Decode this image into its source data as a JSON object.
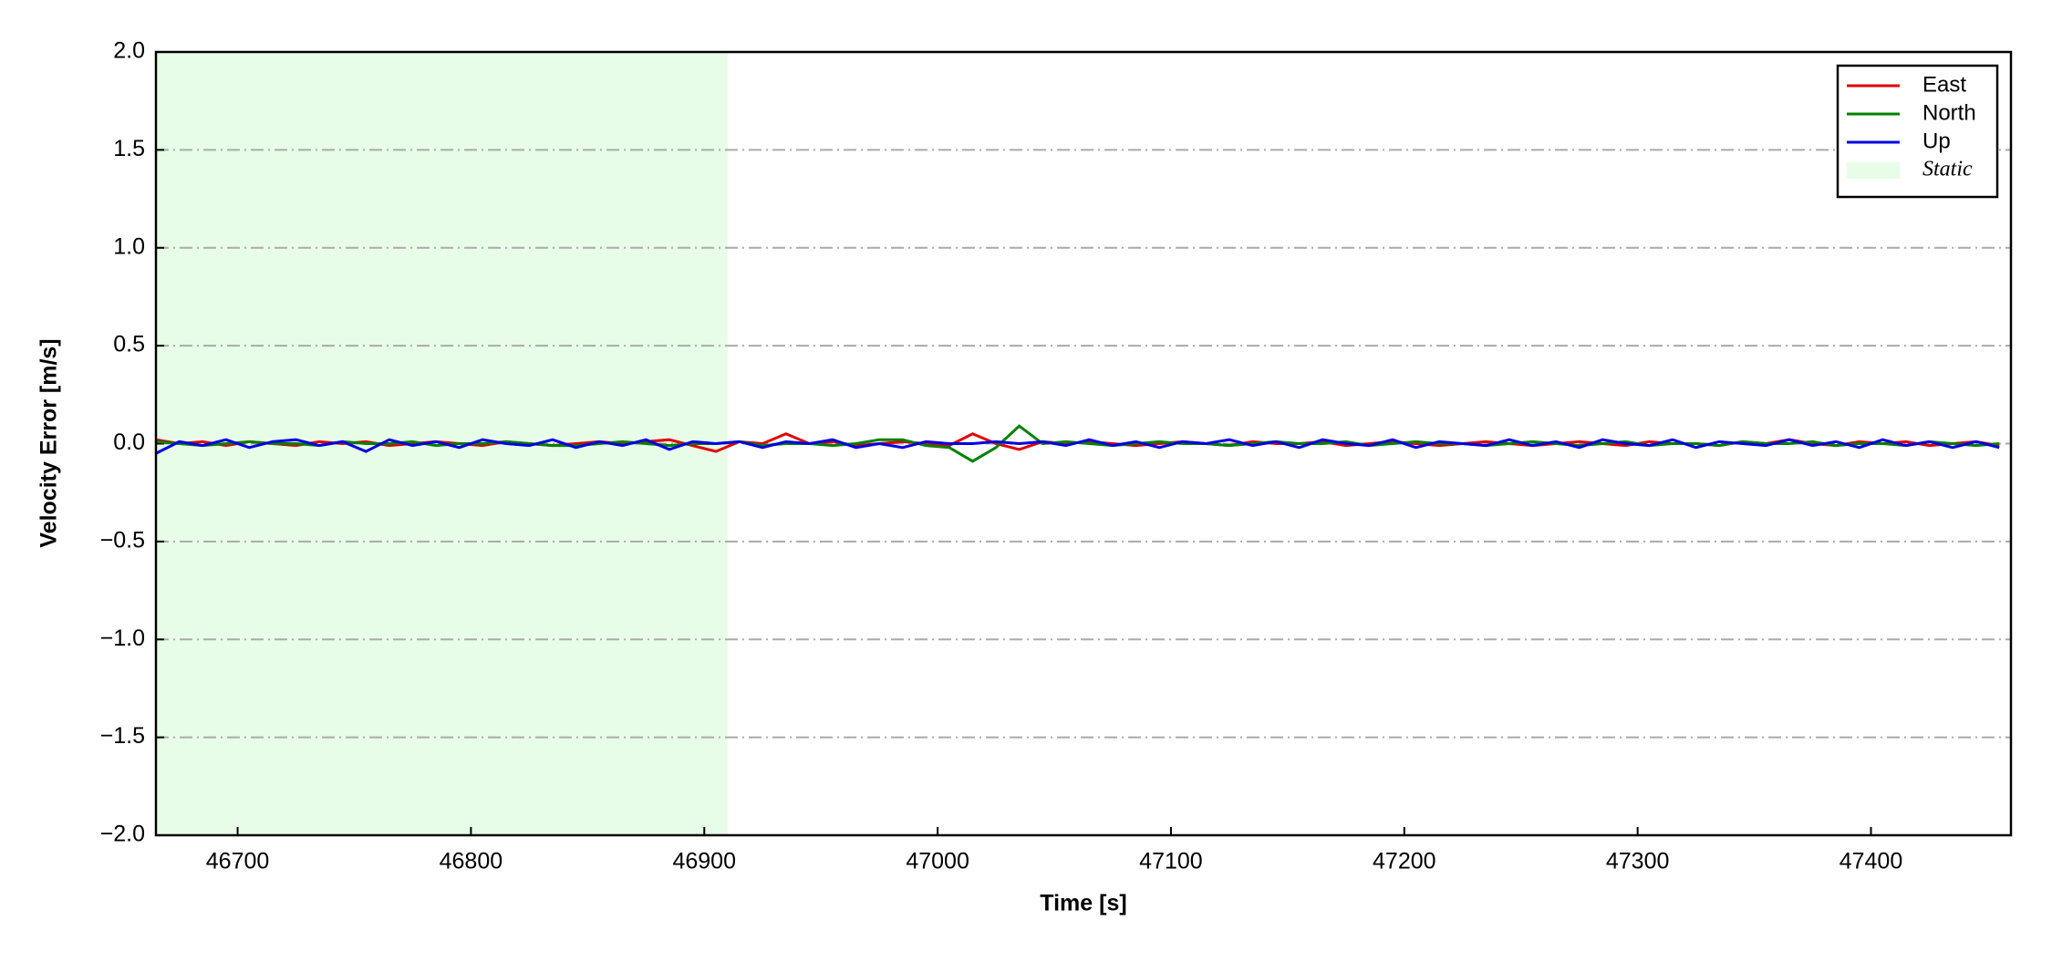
{
  "chart_data": {
    "type": "line",
    "xlabel": "Time [s]",
    "ylabel": "Velocity Error [m/s]",
    "x": [
      46665,
      46675,
      46685,
      46695,
      46705,
      46715,
      46725,
      46735,
      46745,
      46755,
      46765,
      46775,
      46785,
      46795,
      46805,
      46815,
      46825,
      46835,
      46845,
      46855,
      46865,
      46875,
      46885,
      46895,
      46905,
      46915,
      46925,
      46935,
      46945,
      46955,
      46965,
      46975,
      46985,
      46995,
      47005,
      47015,
      47025,
      47035,
      47045,
      47055,
      47065,
      47075,
      47085,
      47095,
      47105,
      47115,
      47125,
      47135,
      47145,
      47155,
      47165,
      47175,
      47185,
      47195,
      47205,
      47215,
      47225,
      47235,
      47245,
      47255,
      47265,
      47275,
      47285,
      47295,
      47305,
      47315,
      47325,
      47335,
      47345,
      47355,
      47365,
      47375,
      47385,
      47395,
      47405,
      47415,
      47425,
      47435,
      47445,
      47455
    ],
    "series": [
      {
        "name": "East",
        "color": "#e00000",
        "values": [
          0.02,
          0.0,
          0.01,
          -0.01,
          0.01,
          0.0,
          -0.01,
          0.01,
          0.0,
          0.01,
          -0.01,
          0.0,
          0.01,
          0.0,
          -0.01,
          0.01,
          0.0,
          -0.01,
          0.0,
          0.01,
          0.0,
          0.01,
          0.02,
          -0.01,
          -0.04,
          0.01,
          0.0,
          0.05,
          0.0,
          0.01,
          -0.01,
          0.0,
          0.01,
          0.0,
          -0.01,
          0.05,
          0.0,
          -0.03,
          0.01,
          0.0,
          0.01,
          0.0,
          -0.01,
          0.0,
          0.01,
          0.0,
          -0.01,
          0.01,
          0.0,
          0.0,
          0.01,
          -0.01,
          0.0,
          0.01,
          0.0,
          -0.01,
          0.0,
          0.01,
          0.0,
          -0.01,
          0.0,
          0.01,
          0.0,
          -0.01,
          0.01,
          0.0,
          0.0,
          -0.01,
          0.01,
          0.0,
          0.02,
          0.0,
          -0.01,
          0.01,
          0.0,
          0.01,
          -0.01,
          0.0,
          0.01,
          -0.01
        ]
      },
      {
        "name": "North",
        "color": "#008000",
        "values": [
          0.01,
          0.0,
          -0.01,
          0.0,
          0.01,
          0.0,
          0.0,
          -0.01,
          0.01,
          0.0,
          0.0,
          0.01,
          -0.01,
          0.0,
          0.0,
          0.01,
          0.0,
          -0.01,
          -0.01,
          0.0,
          0.01,
          0.0,
          -0.01,
          0.0,
          0.0,
          0.01,
          -0.01,
          0.0,
          0.0,
          -0.01,
          0.0,
          0.02,
          0.02,
          -0.01,
          -0.02,
          -0.09,
          -0.02,
          0.09,
          0.0,
          0.01,
          0.0,
          -0.01,
          0.0,
          0.01,
          0.0,
          0.0,
          -0.01,
          0.0,
          0.01,
          0.0,
          0.0,
          0.01,
          -0.01,
          0.0,
          0.01,
          0.0,
          0.0,
          -0.01,
          0.0,
          0.01,
          0.0,
          -0.01,
          0.0,
          0.01,
          -0.01,
          0.0,
          0.0,
          -0.01,
          0.01,
          0.0,
          0.0,
          0.01,
          -0.01,
          0.0,
          0.0,
          -0.01,
          0.01,
          0.0,
          -0.01,
          0.0
        ]
      },
      {
        "name": "Up",
        "color": "#0000e0",
        "values": [
          -0.05,
          0.01,
          -0.01,
          0.02,
          -0.02,
          0.01,
          0.02,
          -0.01,
          0.01,
          -0.04,
          0.02,
          -0.01,
          0.01,
          -0.02,
          0.02,
          0.0,
          -0.01,
          0.02,
          -0.02,
          0.01,
          -0.01,
          0.02,
          -0.03,
          0.01,
          0.0,
          0.01,
          -0.02,
          0.01,
          0.0,
          0.02,
          -0.02,
          0.0,
          -0.02,
          0.01,
          0.0,
          0.0,
          0.01,
          0.0,
          0.01,
          -0.01,
          0.02,
          -0.01,
          0.01,
          -0.02,
          0.01,
          0.0,
          0.02,
          -0.01,
          0.01,
          -0.02,
          0.02,
          0.0,
          -0.01,
          0.02,
          -0.02,
          0.01,
          0.0,
          -0.01,
          0.02,
          -0.01,
          0.01,
          -0.02,
          0.02,
          0.0,
          -0.01,
          0.02,
          -0.02,
          0.01,
          0.0,
          -0.01,
          0.02,
          -0.01,
          0.01,
          -0.02,
          0.02,
          -0.01,
          0.01,
          -0.02,
          0.01,
          -0.02
        ]
      }
    ],
    "shaded_region": {
      "name": "Static",
      "xlim": [
        46665,
        46910
      ],
      "color": "#e8fde8"
    },
    "xlim": [
      46665,
      47460
    ],
    "xticks": [
      46700,
      46800,
      46900,
      47000,
      47100,
      47200,
      47300,
      47400
    ],
    "ylim": [
      -2,
      2
    ],
    "yticks": [
      {
        "value": -2,
        "label": "−2.0"
      },
      {
        "value": -1.5,
        "label": "−1.5"
      },
      {
        "value": -1,
        "label": "−1.0"
      },
      {
        "value": -0.5,
        "label": "−0.5"
      },
      {
        "value": 0,
        "label": "0.0"
      },
      0.5,
      {
        "value": 1,
        "label": "1.0"
      },
      1.5,
      {
        "value": 2,
        "label": "2.0"
      }
    ],
    "grid": true,
    "legend": "upper right"
  }
}
